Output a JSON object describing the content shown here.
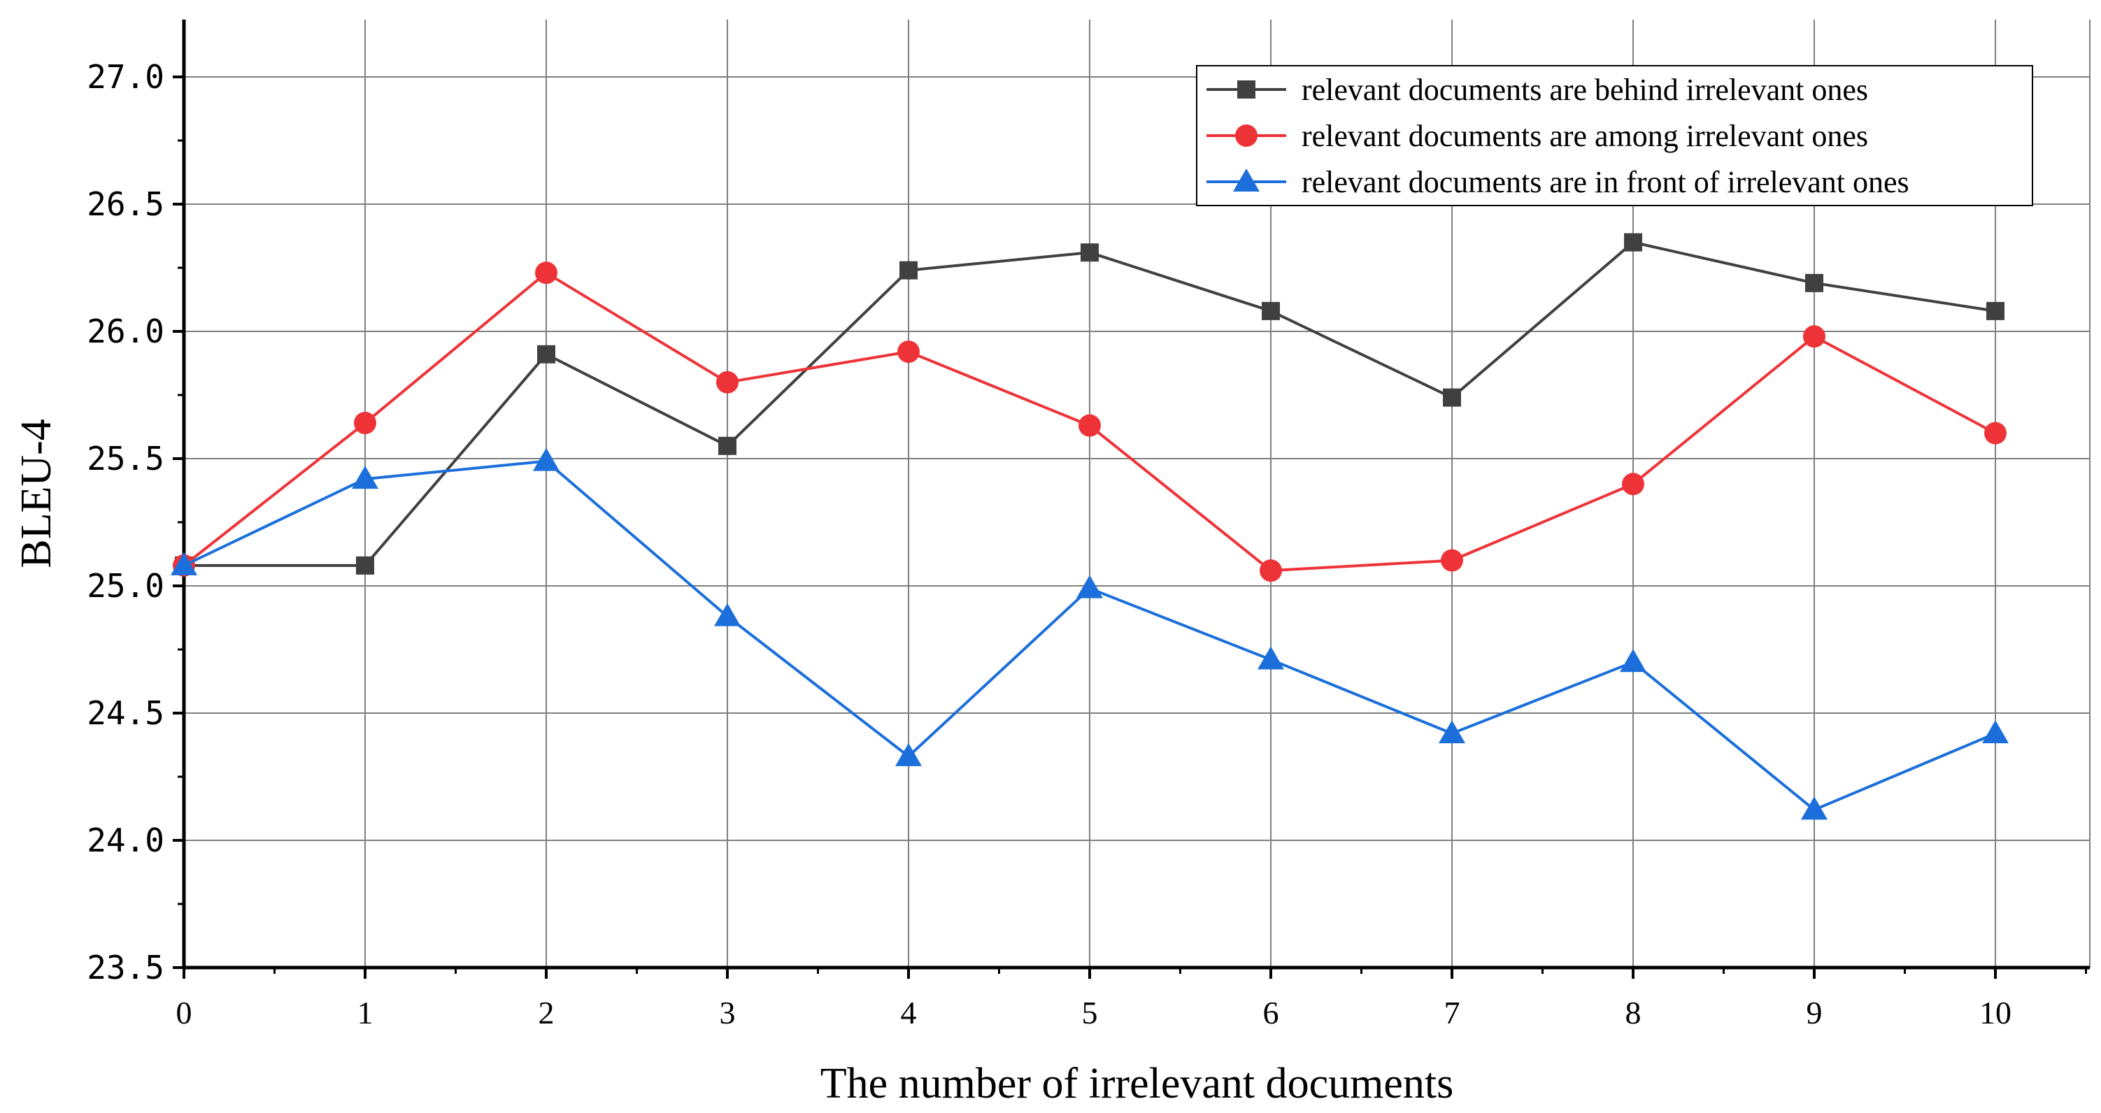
{
  "chart_data": {
    "type": "line",
    "title": "",
    "xlabel": "The number of irrelevant documents",
    "ylabel": "BLEU-4",
    "x": [
      0,
      1,
      2,
      3,
      4,
      5,
      6,
      7,
      8,
      9,
      10
    ],
    "xlim": [
      0,
      10.5
    ],
    "ylim": [
      23.5,
      27.25
    ],
    "xticks": [
      "0",
      "1",
      "2",
      "3",
      "4",
      "5",
      "6",
      "7",
      "8",
      "9",
      "10"
    ],
    "yticks": [
      "23.5",
      "24.0",
      "24.5",
      "25.0",
      "25.5",
      "26.0",
      "26.5",
      "27.0"
    ],
    "grid": true,
    "legend_position": "top-right",
    "series": [
      {
        "name": "relevant documents are behind irrelevant ones",
        "color": "#404040",
        "marker": "square",
        "values": [
          25.08,
          25.08,
          25.91,
          25.55,
          26.24,
          26.31,
          26.08,
          25.74,
          26.35,
          26.19,
          26.08
        ]
      },
      {
        "name": "relevant documents are among irrelevant ones",
        "color": "#ee3338",
        "marker": "circle",
        "values": [
          25.08,
          25.64,
          26.23,
          25.8,
          25.92,
          25.63,
          25.06,
          25.1,
          25.4,
          25.98,
          25.6
        ]
      },
      {
        "name": "relevant documents are in front of irrelevant ones",
        "color": "#1c6fdb",
        "marker": "triangle",
        "values": [
          25.08,
          25.42,
          25.49,
          24.88,
          24.33,
          24.99,
          24.71,
          24.42,
          24.7,
          24.12,
          24.42
        ]
      }
    ]
  }
}
